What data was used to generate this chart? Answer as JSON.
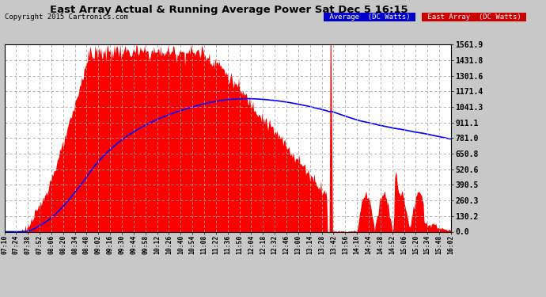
{
  "title": "East Array Actual & Running Average Power Sat Dec 5 16:15",
  "copyright": "Copyright 2015 Cartronics.com",
  "ylabel_right_ticks": [
    0.0,
    130.2,
    260.3,
    390.5,
    520.6,
    650.8,
    781.0,
    911.1,
    1041.3,
    1171.4,
    1301.6,
    1431.8,
    1561.9
  ],
  "ymax": 1561.9,
  "ymin": 0.0,
  "bg_color": "#c8c8c8",
  "plot_bg_color": "#ffffff",
  "area_color": "#ff0000",
  "avg_color": "#0000ff",
  "grid_color": "#aaaaaa",
  "xtick_labels": [
    "07:10",
    "07:24",
    "07:38",
    "07:52",
    "08:06",
    "08:20",
    "08:34",
    "08:48",
    "09:02",
    "09:16",
    "09:30",
    "09:44",
    "09:58",
    "10:12",
    "10:26",
    "10:40",
    "10:54",
    "11:08",
    "11:22",
    "11:36",
    "11:50",
    "12:04",
    "12:18",
    "12:32",
    "12:46",
    "13:00",
    "13:14",
    "13:28",
    "13:42",
    "13:56",
    "14:10",
    "14:24",
    "14:38",
    "14:52",
    "15:06",
    "15:20",
    "15:34",
    "15:48",
    "16:02"
  ]
}
